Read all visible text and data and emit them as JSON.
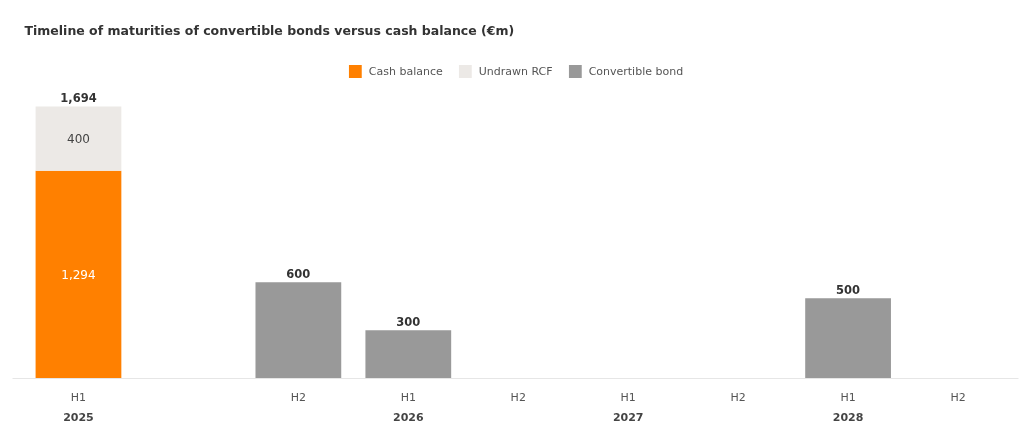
{
  "chart_data": {
    "type": "bar",
    "title": "Timeline of maturities of convertible bonds versus cash balance (€m)",
    "categories": [
      "H1\n2025",
      null,
      "H2",
      "H1\n2026",
      "H2",
      "H1\n2027",
      "H2",
      "H1\n2028",
      "H2"
    ],
    "stacked": true,
    "series": [
      {
        "name": "Cash balance",
        "color": "#ff8000",
        "values": [
          1294,
          null,
          null,
          null,
          null,
          null,
          null,
          null,
          null
        ],
        "value_labels": [
          "1,294",
          null,
          null,
          null,
          null,
          null,
          null,
          null,
          null
        ]
      },
      {
        "name": "Undrawn RCF",
        "color": "#ece9e6",
        "values": [
          400,
          null,
          null,
          null,
          null,
          null,
          null,
          null,
          null
        ],
        "value_labels": [
          "400",
          null,
          null,
          null,
          null,
          null,
          null,
          null,
          null
        ]
      },
      {
        "name": "Convertible bond",
        "color": "#999999",
        "values": [
          null,
          null,
          600,
          300,
          null,
          null,
          null,
          500,
          null
        ],
        "value_labels": [
          null,
          null,
          "600",
          "300",
          null,
          null,
          null,
          "500",
          null
        ]
      }
    ],
    "totals": [
      "1,694",
      null,
      null,
      null,
      null,
      null,
      null,
      null,
      null
    ],
    "legend": "top"
  }
}
